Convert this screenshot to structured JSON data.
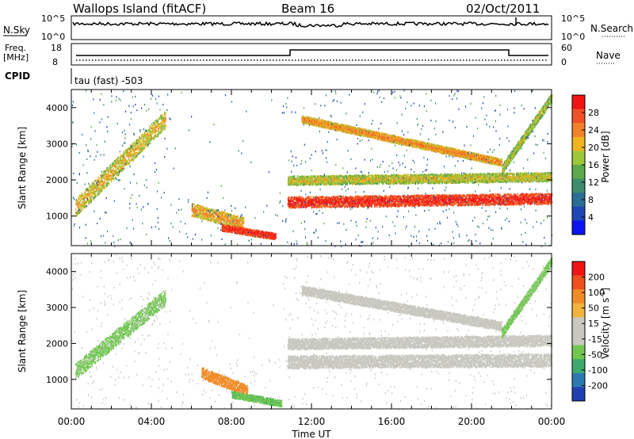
{
  "header": {
    "site": "Wallops Island (fitACF)",
    "beam": "Beam 16",
    "date": "02/Oct/2011"
  },
  "top_panels": {
    "nsky_label": "N.Sky",
    "nsearch_label": "N.Search",
    "freq_label_1": "Freq.",
    "freq_label_2": "[MHz]",
    "nave_label": "Nave",
    "cpid_label": "CPID",
    "cpid_text": "tau (fast) -503",
    "noise_ticks": [
      "10^5",
      "10^0"
    ],
    "freq_ticks": [
      "18",
      "8"
    ],
    "nave_ticks": [
      "60",
      "0"
    ]
  },
  "colors": {
    "power_scale": [
      "#0a14f0",
      "#1e46b4",
      "#2a6e96",
      "#3c8c6e",
      "#5aaa4a",
      "#9cc83a",
      "#f0b41e",
      "#f08228",
      "#f05028",
      "#f01414"
    ],
    "velocity_scale": [
      "#2040b0",
      "#2a7ab0",
      "#3caa6e",
      "#70c850",
      "#c8c8c0",
      "#c8c8c0",
      "#f0b43c",
      "#f08c28",
      "#f0501e",
      "#f01414"
    ]
  },
  "chart_data": [
    {
      "type": "heatmap",
      "title": "",
      "xlabel": "Time UT",
      "ylabel": "Slant Range [km]",
      "x_range_hours": [
        0,
        24
      ],
      "xticks": [
        "00:00",
        "04:00",
        "08:00",
        "12:00",
        "16:00",
        "20:00",
        "00:00"
      ],
      "ylim": [
        180,
        4500
      ],
      "yticks": [
        1000,
        2000,
        3000,
        4000
      ],
      "colorbar_label": "Power [dB]",
      "colorbar_ticks": [
        "4",
        "8",
        "12",
        "16",
        "20",
        "24",
        "28"
      ],
      "colorbar_range": [
        0,
        30
      ],
      "echo_bands": [
        {
          "t_start": 0.2,
          "t_end": 4.7,
          "range_start": 1250,
          "range_end": 3700,
          "thickness": 500,
          "power": 18
        },
        {
          "t_start": 6.0,
          "t_end": 8.6,
          "range_start": 1200,
          "range_end": 800,
          "thickness": 350,
          "power": 20
        },
        {
          "t_start": 7.5,
          "t_end": 10.2,
          "range_start": 700,
          "range_end": 450,
          "thickness": 180,
          "power": 27
        },
        {
          "t_start": 10.8,
          "t_end": 24.0,
          "range_start": 1400,
          "range_end": 1500,
          "thickness": 300,
          "power": 27
        },
        {
          "t_start": 10.8,
          "t_end": 24.0,
          "range_start": 2000,
          "range_end": 2100,
          "thickness": 250,
          "power": 17
        },
        {
          "t_start": 11.5,
          "t_end": 21.5,
          "range_start": 3700,
          "range_end": 2500,
          "thickness": 200,
          "power": 21
        },
        {
          "t_start": 21.5,
          "t_end": 24.0,
          "range_start": 2300,
          "range_end": 4300,
          "thickness": 250,
          "power": 16
        }
      ]
    },
    {
      "type": "heatmap",
      "title": "",
      "xlabel": "Time UT",
      "ylabel": "Slant Range [km]",
      "x_range_hours": [
        0,
        24
      ],
      "xticks": [
        "00:00",
        "04:00",
        "08:00",
        "12:00",
        "16:00",
        "20:00",
        "00:00"
      ],
      "ylim": [
        180,
        4500
      ],
      "yticks": [
        1000,
        2000,
        3000,
        4000
      ],
      "colorbar_label": "Velocity [m s^-1]",
      "colorbar_ticks": [
        "200",
        "100",
        "50",
        "15",
        "-15",
        "-50",
        "-100",
        "-200"
      ],
      "colorbar_range": [
        -250,
        250
      ],
      "echo_bands": [
        {
          "t_start": 0.2,
          "t_end": 4.7,
          "range_start": 1250,
          "range_end": 3300,
          "thickness": 450,
          "velocity": -60
        },
        {
          "t_start": 6.5,
          "t_end": 8.8,
          "range_start": 1200,
          "range_end": 700,
          "thickness": 300,
          "velocity": 120
        },
        {
          "t_start": 8.0,
          "t_end": 10.5,
          "range_start": 600,
          "range_end": 350,
          "thickness": 180,
          "velocity": -90
        },
        {
          "t_start": 10.8,
          "t_end": 24.0,
          "range_start": 1500,
          "range_end": 1550,
          "thickness": 350,
          "velocity": 0
        },
        {
          "t_start": 10.8,
          "t_end": 24.0,
          "range_start": 2000,
          "range_end": 2100,
          "thickness": 300,
          "velocity": 0
        },
        {
          "t_start": 11.5,
          "t_end": 21.5,
          "range_start": 3500,
          "range_end": 2500,
          "thickness": 250,
          "velocity": 0
        },
        {
          "t_start": 21.5,
          "t_end": 24.0,
          "range_start": 2300,
          "range_end": 4300,
          "thickness": 250,
          "velocity": -60
        }
      ]
    }
  ]
}
